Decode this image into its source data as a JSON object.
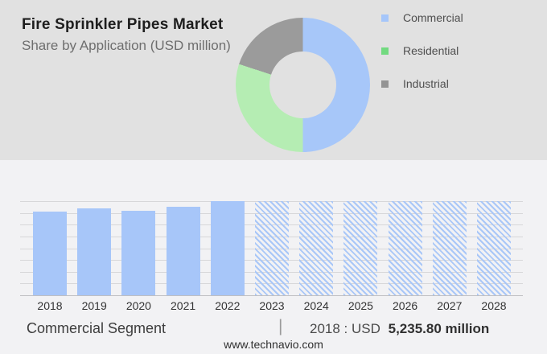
{
  "header": {
    "title": "Fire Sprinkler Pipes Market",
    "subtitle": "Share by Application (USD million)"
  },
  "legend": {
    "items": [
      {
        "label": "Commercial",
        "color": "#a5c6fa"
      },
      {
        "label": "Residential",
        "color": "#72da80"
      },
      {
        "label": "Industrial",
        "color": "#949494"
      }
    ]
  },
  "colors": {
    "top_section_bg": "#e1e1e1",
    "bottom_section_bg": "#f2f2f4",
    "bar_blue": "#a7c6f9",
    "hatch_blue": "#a9c7f8",
    "donut_blue": "#a7c7f9",
    "donut_green": "#b5edb3",
    "donut_gray": "#9b9b9b",
    "gridline": "#d7d7d9"
  },
  "chart_data": [
    {
      "type": "pie",
      "subtype": "donut",
      "title": "Share by Application (USD million)",
      "slices": [
        {
          "label": "Commercial",
          "percent": 50,
          "color": "#a7c7f9"
        },
        {
          "label": "Residential",
          "percent": 30,
          "color": "#b5edb3"
        },
        {
          "label": "Industrial",
          "percent": 20,
          "color": "#9b9b9b"
        }
      ],
      "start_angle_deg": 0,
      "direction": "clockwise",
      "note": "slice percentages estimated from arc angles; no labels shown in image"
    },
    {
      "type": "bar",
      "categories": [
        "2018",
        "2019",
        "2020",
        "2021",
        "2022",
        "2023",
        "2024",
        "2025",
        "2026",
        "2027",
        "2028"
      ],
      "relative_heights": [
        0.889,
        0.923,
        0.897,
        0.94,
        1.0,
        1.0,
        1.0,
        1.0,
        1.0,
        1.0,
        1.0
      ],
      "solid_years": [
        "2018",
        "2019",
        "2020",
        "2021",
        "2022"
      ],
      "hatched_forecast_years": [
        "2023",
        "2024",
        "2025",
        "2026",
        "2027",
        "2028"
      ],
      "anchor_value": {
        "year": "2018",
        "value_usd_million": 5235.8
      },
      "ylabel": "",
      "xlabel": "",
      "y_axis_ticks_visible": false,
      "gridlines": 9,
      "note": "no y-axis scale shown; heights are relative to tallest bar (2022 and forecast bars reach top gridline)"
    }
  ],
  "footer": {
    "segment_label": "Commercial Segment",
    "separator": "|",
    "value_prefix": "2018 : USD",
    "value_bold": "5,235.80 million",
    "website": "www.technavio.com"
  }
}
